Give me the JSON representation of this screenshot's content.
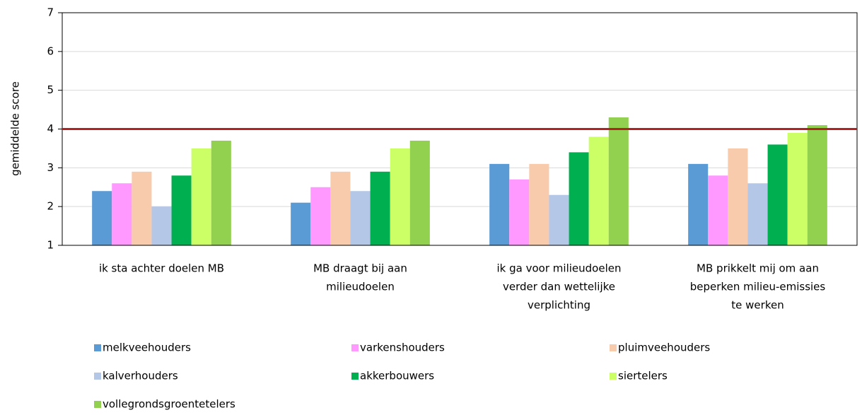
{
  "chart_data": {
    "type": "bar",
    "ylabel": "gemiddelde score",
    "categories": [
      [
        "ik sta achter doelen MB"
      ],
      [
        "MB draagt bij aan",
        "milieudoelen"
      ],
      [
        "ik ga voor milieudoelen",
        "verder dan wettelijke",
        "verplichting"
      ],
      [
        "MB prikkelt mij om aan",
        "beperken milieu-emissies",
        "te werken"
      ]
    ],
    "series": [
      {
        "name": "melkveehouders",
        "color": "#5b9bd5",
        "values": [
          2.4,
          2.1,
          3.1,
          3.1
        ]
      },
      {
        "name": "varkenshouders",
        "color": "#ff99ff",
        "values": [
          2.6,
          2.5,
          2.7,
          2.8
        ]
      },
      {
        "name": "pluimveehouders",
        "color": "#f8cbad",
        "values": [
          2.9,
          2.9,
          3.1,
          3.5
        ]
      },
      {
        "name": "kalverhouders",
        "color": "#b4c7e7",
        "values": [
          2.0,
          2.4,
          2.3,
          2.6
        ]
      },
      {
        "name": "akkerbouwers",
        "color": "#00b050",
        "values": [
          2.8,
          2.9,
          3.4,
          3.6
        ]
      },
      {
        "name": "siertelers",
        "color": "#ccff66",
        "values": [
          3.5,
          3.5,
          3.8,
          3.9
        ]
      },
      {
        "name": "vollegrondsgroentetelers",
        "color": "#92d050",
        "values": [
          3.7,
          3.7,
          4.3,
          4.1
        ]
      }
    ],
    "reference_line": {
      "value": 4,
      "color": "#b22222"
    },
    "ylim": [
      1,
      7
    ],
    "yticks": [
      1,
      2,
      3,
      4,
      5,
      6,
      7
    ],
    "grid": true
  }
}
